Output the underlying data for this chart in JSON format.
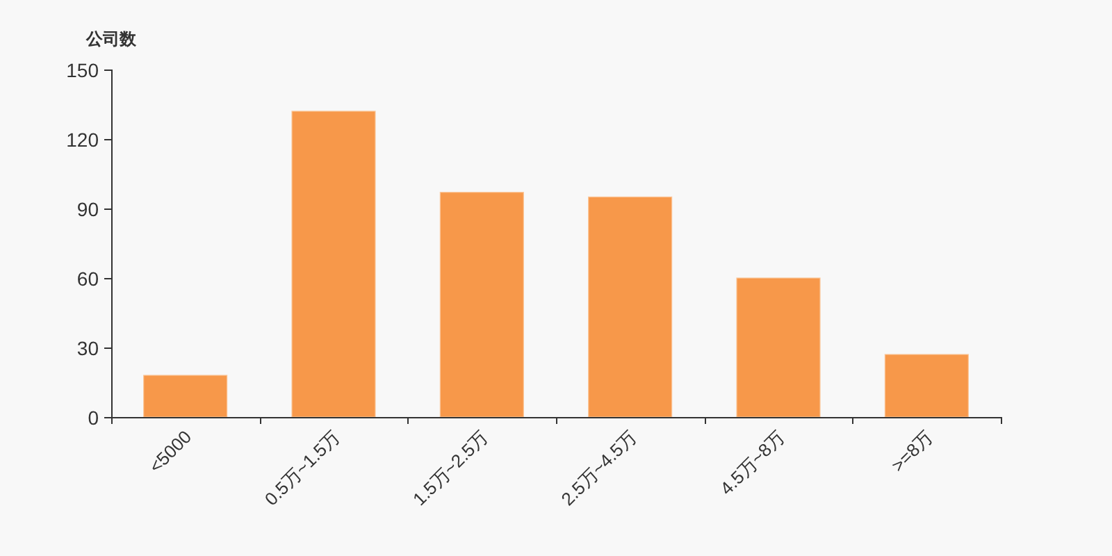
{
  "chart_data": {
    "type": "bar",
    "ylabel": "公司数",
    "categories": [
      "<5000",
      "0.5万~1.5万",
      "1.5万~2.5万",
      "2.5万~4.5万",
      "4.5万~8万",
      ">=8万"
    ],
    "values": [
      18,
      132,
      97,
      95,
      60,
      27
    ],
    "color": "#f7984a",
    "ylim": [
      0,
      150
    ],
    "yticks": [
      0,
      30,
      60,
      90,
      120,
      150
    ]
  }
}
